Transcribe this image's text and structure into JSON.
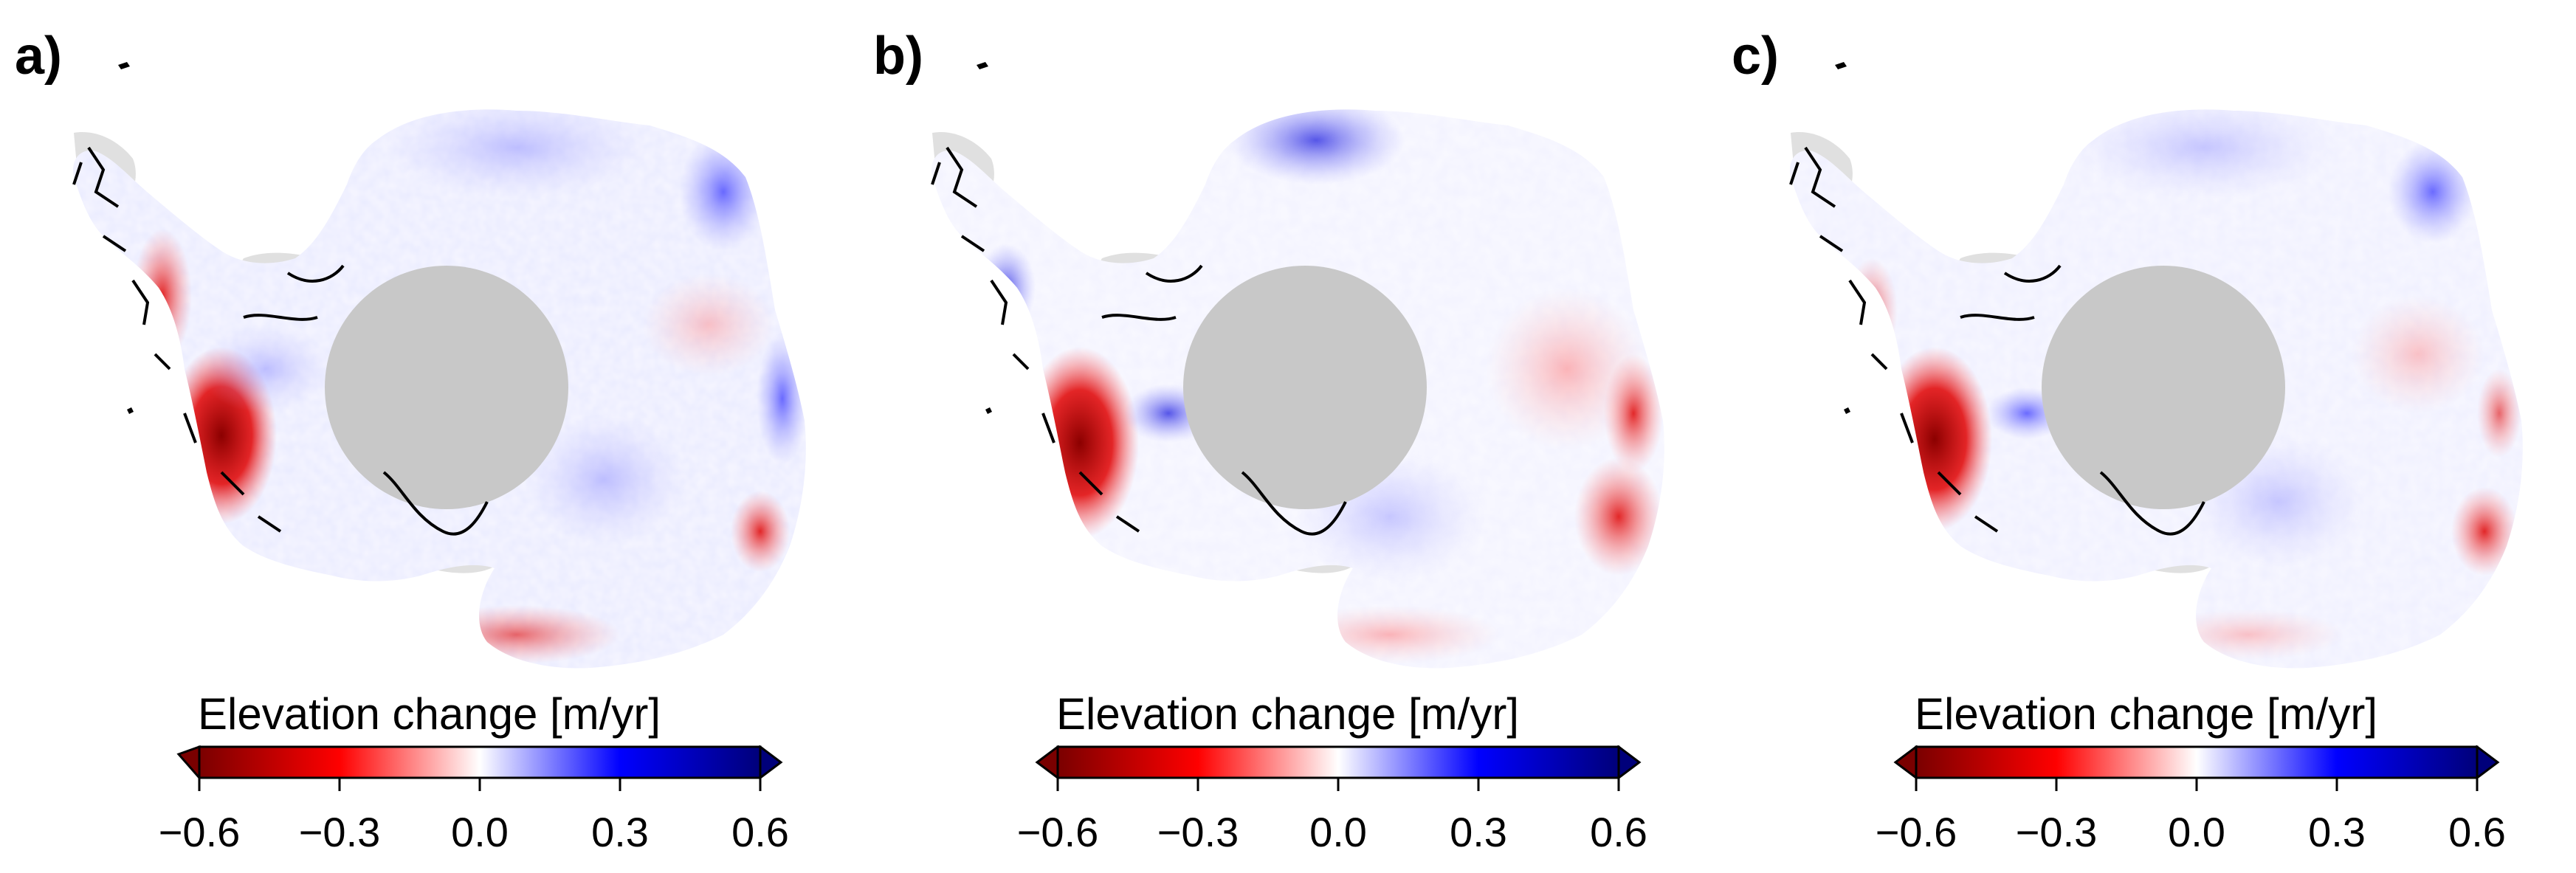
{
  "figure": {
    "colorbar": {
      "title": "Elevation change [m/yr]",
      "ticks": [
        "−0.6",
        "−0.3",
        "0.0",
        "0.3",
        "0.6"
      ],
      "range": [
        -0.6,
        0.6
      ],
      "colors": {
        "dark_red": "#7a0000",
        "red": "#ff0000",
        "white": "#ffffff",
        "blue": "#0000ff",
        "dark_blue": "#00007a"
      }
    },
    "colors": {
      "ice_shelf": "#e0e0e0",
      "pole_hole": "#c8c8c8",
      "coastline": "#000000"
    },
    "panels": [
      {
        "label": "a)"
      },
      {
        "label": "b)"
      },
      {
        "label": "c)"
      }
    ]
  }
}
